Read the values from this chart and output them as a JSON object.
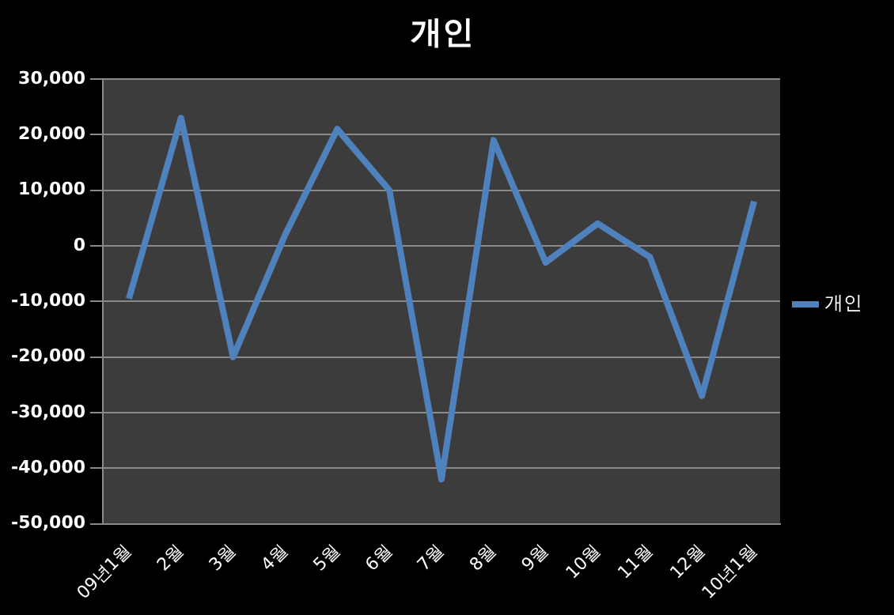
{
  "chart_data": {
    "type": "line",
    "title": "개인",
    "categories": [
      "09년1월",
      "2월",
      "3월",
      "4월",
      "5월",
      "6월",
      "7월",
      "8월",
      "9월",
      "10월",
      "11월",
      "12월",
      "10년1월"
    ],
    "series": [
      {
        "name": "개인",
        "color": "#4f81bd",
        "values": [
          -9500,
          23000,
          -20000,
          2000,
          21000,
          10000,
          -42000,
          19000,
          -3000,
          4000,
          -2000,
          -27000,
          8000
        ]
      }
    ],
    "ylim": [
      -50000,
      30000
    ],
    "yticks": [
      {
        "value": -50000,
        "label": "-50,000"
      },
      {
        "value": -40000,
        "label": "-40,000"
      },
      {
        "value": -30000,
        "label": "-30,000"
      },
      {
        "value": -20000,
        "label": "-20,000"
      },
      {
        "value": -10000,
        "label": "-10,000"
      },
      {
        "value": 0,
        "label": "0"
      },
      {
        "value": 10000,
        "label": "10,000"
      },
      {
        "value": 20000,
        "label": "20,000"
      },
      {
        "value": 30000,
        "label": "30,000"
      }
    ],
    "grid": "y",
    "legend": "right",
    "marker": "none",
    "line_style": "solid"
  }
}
